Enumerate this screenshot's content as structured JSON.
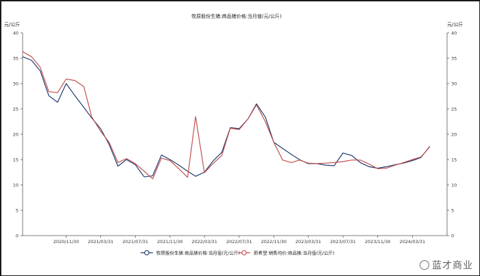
{
  "chart_data": {
    "type": "line",
    "title": "牧原股份生猪:商品猪价格:当月值(元/公斤)",
    "y_unit_left": "元/公斤",
    "y_unit_right": "元/公斤",
    "ylim": [
      0,
      40
    ],
    "yticks": [
      0,
      5,
      10,
      15,
      20,
      25,
      30,
      35,
      40
    ],
    "xlim": [
      "2020-06-30",
      "2024-07-31"
    ],
    "xticks": [
      "2020/11/30",
      "2021/03/31",
      "2021/07/31",
      "2021/11/30",
      "2022/03/31",
      "2022/07/31",
      "2022/11/30",
      "2023/03/31",
      "2023/07/31",
      "2023/11/30",
      "2024/03/31"
    ],
    "legend_position": "bottom",
    "grid": false,
    "series": [
      {
        "name": "牧原股份生猪:商品猪价格:当月值(元/公斤)",
        "color": "#1f3a6e",
        "points": [
          [
            "2020-06-30",
            35.3
          ],
          [
            "2020-07-31",
            34.6
          ],
          [
            "2020-08-31",
            32.5
          ],
          [
            "2020-09-30",
            27.6
          ],
          [
            "2020-10-31",
            26.3
          ],
          [
            "2020-11-30",
            30.0
          ],
          [
            "2020-12-31",
            27.6
          ],
          [
            "2021-01-31",
            25.3
          ],
          [
            "2021-02-28",
            23.2
          ],
          [
            "2021-03-31",
            21.1
          ],
          [
            "2021-04-30",
            18.0
          ],
          [
            "2021-05-31",
            13.7
          ],
          [
            "2021-06-30",
            15.0
          ],
          [
            "2021-07-31",
            14.0
          ],
          [
            "2021-08-31",
            11.6
          ],
          [
            "2021-09-30",
            11.8
          ],
          [
            "2021-10-31",
            15.9
          ],
          [
            "2021-11-30",
            15.0
          ],
          [
            "2021-12-31",
            13.9
          ],
          [
            "2022-01-31",
            12.7
          ],
          [
            "2022-02-28",
            11.7
          ],
          [
            "2022-03-31",
            12.5
          ],
          [
            "2022-04-30",
            14.7
          ],
          [
            "2022-05-31",
            16.4
          ],
          [
            "2022-06-30",
            21.3
          ],
          [
            "2022-07-31",
            21.1
          ],
          [
            "2022-08-31",
            23.0
          ],
          [
            "2022-09-30",
            26.0
          ],
          [
            "2022-10-31",
            23.4
          ],
          [
            "2022-11-30",
            18.4
          ],
          [
            "2022-12-31",
            17.2
          ],
          [
            "2023-01-31",
            16.0
          ],
          [
            "2023-02-28",
            15.0
          ],
          [
            "2023-03-31",
            14.2
          ],
          [
            "2023-04-30",
            14.2
          ],
          [
            "2023-05-31",
            13.9
          ],
          [
            "2023-06-30",
            13.8
          ],
          [
            "2023-07-31",
            16.3
          ],
          [
            "2023-08-31",
            15.8
          ],
          [
            "2023-09-30",
            14.4
          ],
          [
            "2023-10-31",
            13.6
          ],
          [
            "2023-11-30",
            13.3
          ],
          [
            "2023-12-31",
            13.6
          ],
          [
            "2024-01-31",
            14.0
          ],
          [
            "2024-02-29",
            14.3
          ],
          [
            "2024-03-31",
            14.8
          ],
          [
            "2024-04-30",
            15.4
          ],
          [
            "2024-05-31",
            17.6
          ]
        ]
      },
      {
        "name": "新希望:销售均价:商品猪:当月值(元/公斤)",
        "color": "#c0504d",
        "points": [
          [
            "2020-06-30",
            36.3
          ],
          [
            "2020-07-31",
            35.3
          ],
          [
            "2020-08-31",
            33.2
          ],
          [
            "2020-09-30",
            28.4
          ],
          [
            "2020-10-31",
            28.2
          ],
          [
            "2020-11-30",
            30.9
          ],
          [
            "2020-12-31",
            30.6
          ],
          [
            "2021-01-31",
            29.4
          ],
          [
            "2021-02-28",
            23.4
          ],
          [
            "2021-03-31",
            20.6
          ],
          [
            "2021-04-30",
            18.4
          ],
          [
            "2021-05-31",
            14.4
          ],
          [
            "2021-06-30",
            15.2
          ],
          [
            "2021-07-31",
            14.2
          ],
          [
            "2021-08-31",
            12.7
          ],
          [
            "2021-09-30",
            11.2
          ],
          [
            "2021-10-31",
            15.3
          ],
          [
            "2021-11-30",
            14.8
          ],
          [
            "2021-12-31",
            13.2
          ],
          [
            "2022-01-31",
            11.5
          ],
          [
            "2022-02-28",
            23.5
          ],
          [
            "2022-03-31",
            12.4
          ],
          [
            "2022-04-30",
            14.2
          ],
          [
            "2022-05-31",
            15.8
          ],
          [
            "2022-06-30",
            21.2
          ],
          [
            "2022-07-31",
            20.9
          ],
          [
            "2022-08-31",
            23.0
          ],
          [
            "2022-09-30",
            25.8
          ],
          [
            "2022-10-31",
            22.5
          ],
          [
            "2022-11-30",
            18.4
          ],
          [
            "2022-12-31",
            14.9
          ],
          [
            "2023-01-31",
            14.4
          ],
          [
            "2023-02-28",
            14.9
          ],
          [
            "2023-03-31",
            14.3
          ],
          [
            "2023-04-30",
            14.2
          ],
          [
            "2023-05-31",
            14.3
          ],
          [
            "2023-06-30",
            14.4
          ],
          [
            "2023-07-31",
            14.6
          ],
          [
            "2023-08-31",
            14.9
          ],
          [
            "2023-09-30",
            14.9
          ],
          [
            "2023-10-31",
            14.1
          ],
          [
            "2023-11-30",
            13.2
          ],
          [
            "2023-12-31",
            13.3
          ],
          [
            "2024-01-31",
            13.9
          ],
          [
            "2024-02-29",
            14.4
          ],
          [
            "2024-03-31",
            15.0
          ],
          [
            "2024-04-30",
            15.5
          ],
          [
            "2024-05-31",
            17.5
          ]
        ]
      }
    ]
  },
  "watermark": "蓝才商业"
}
